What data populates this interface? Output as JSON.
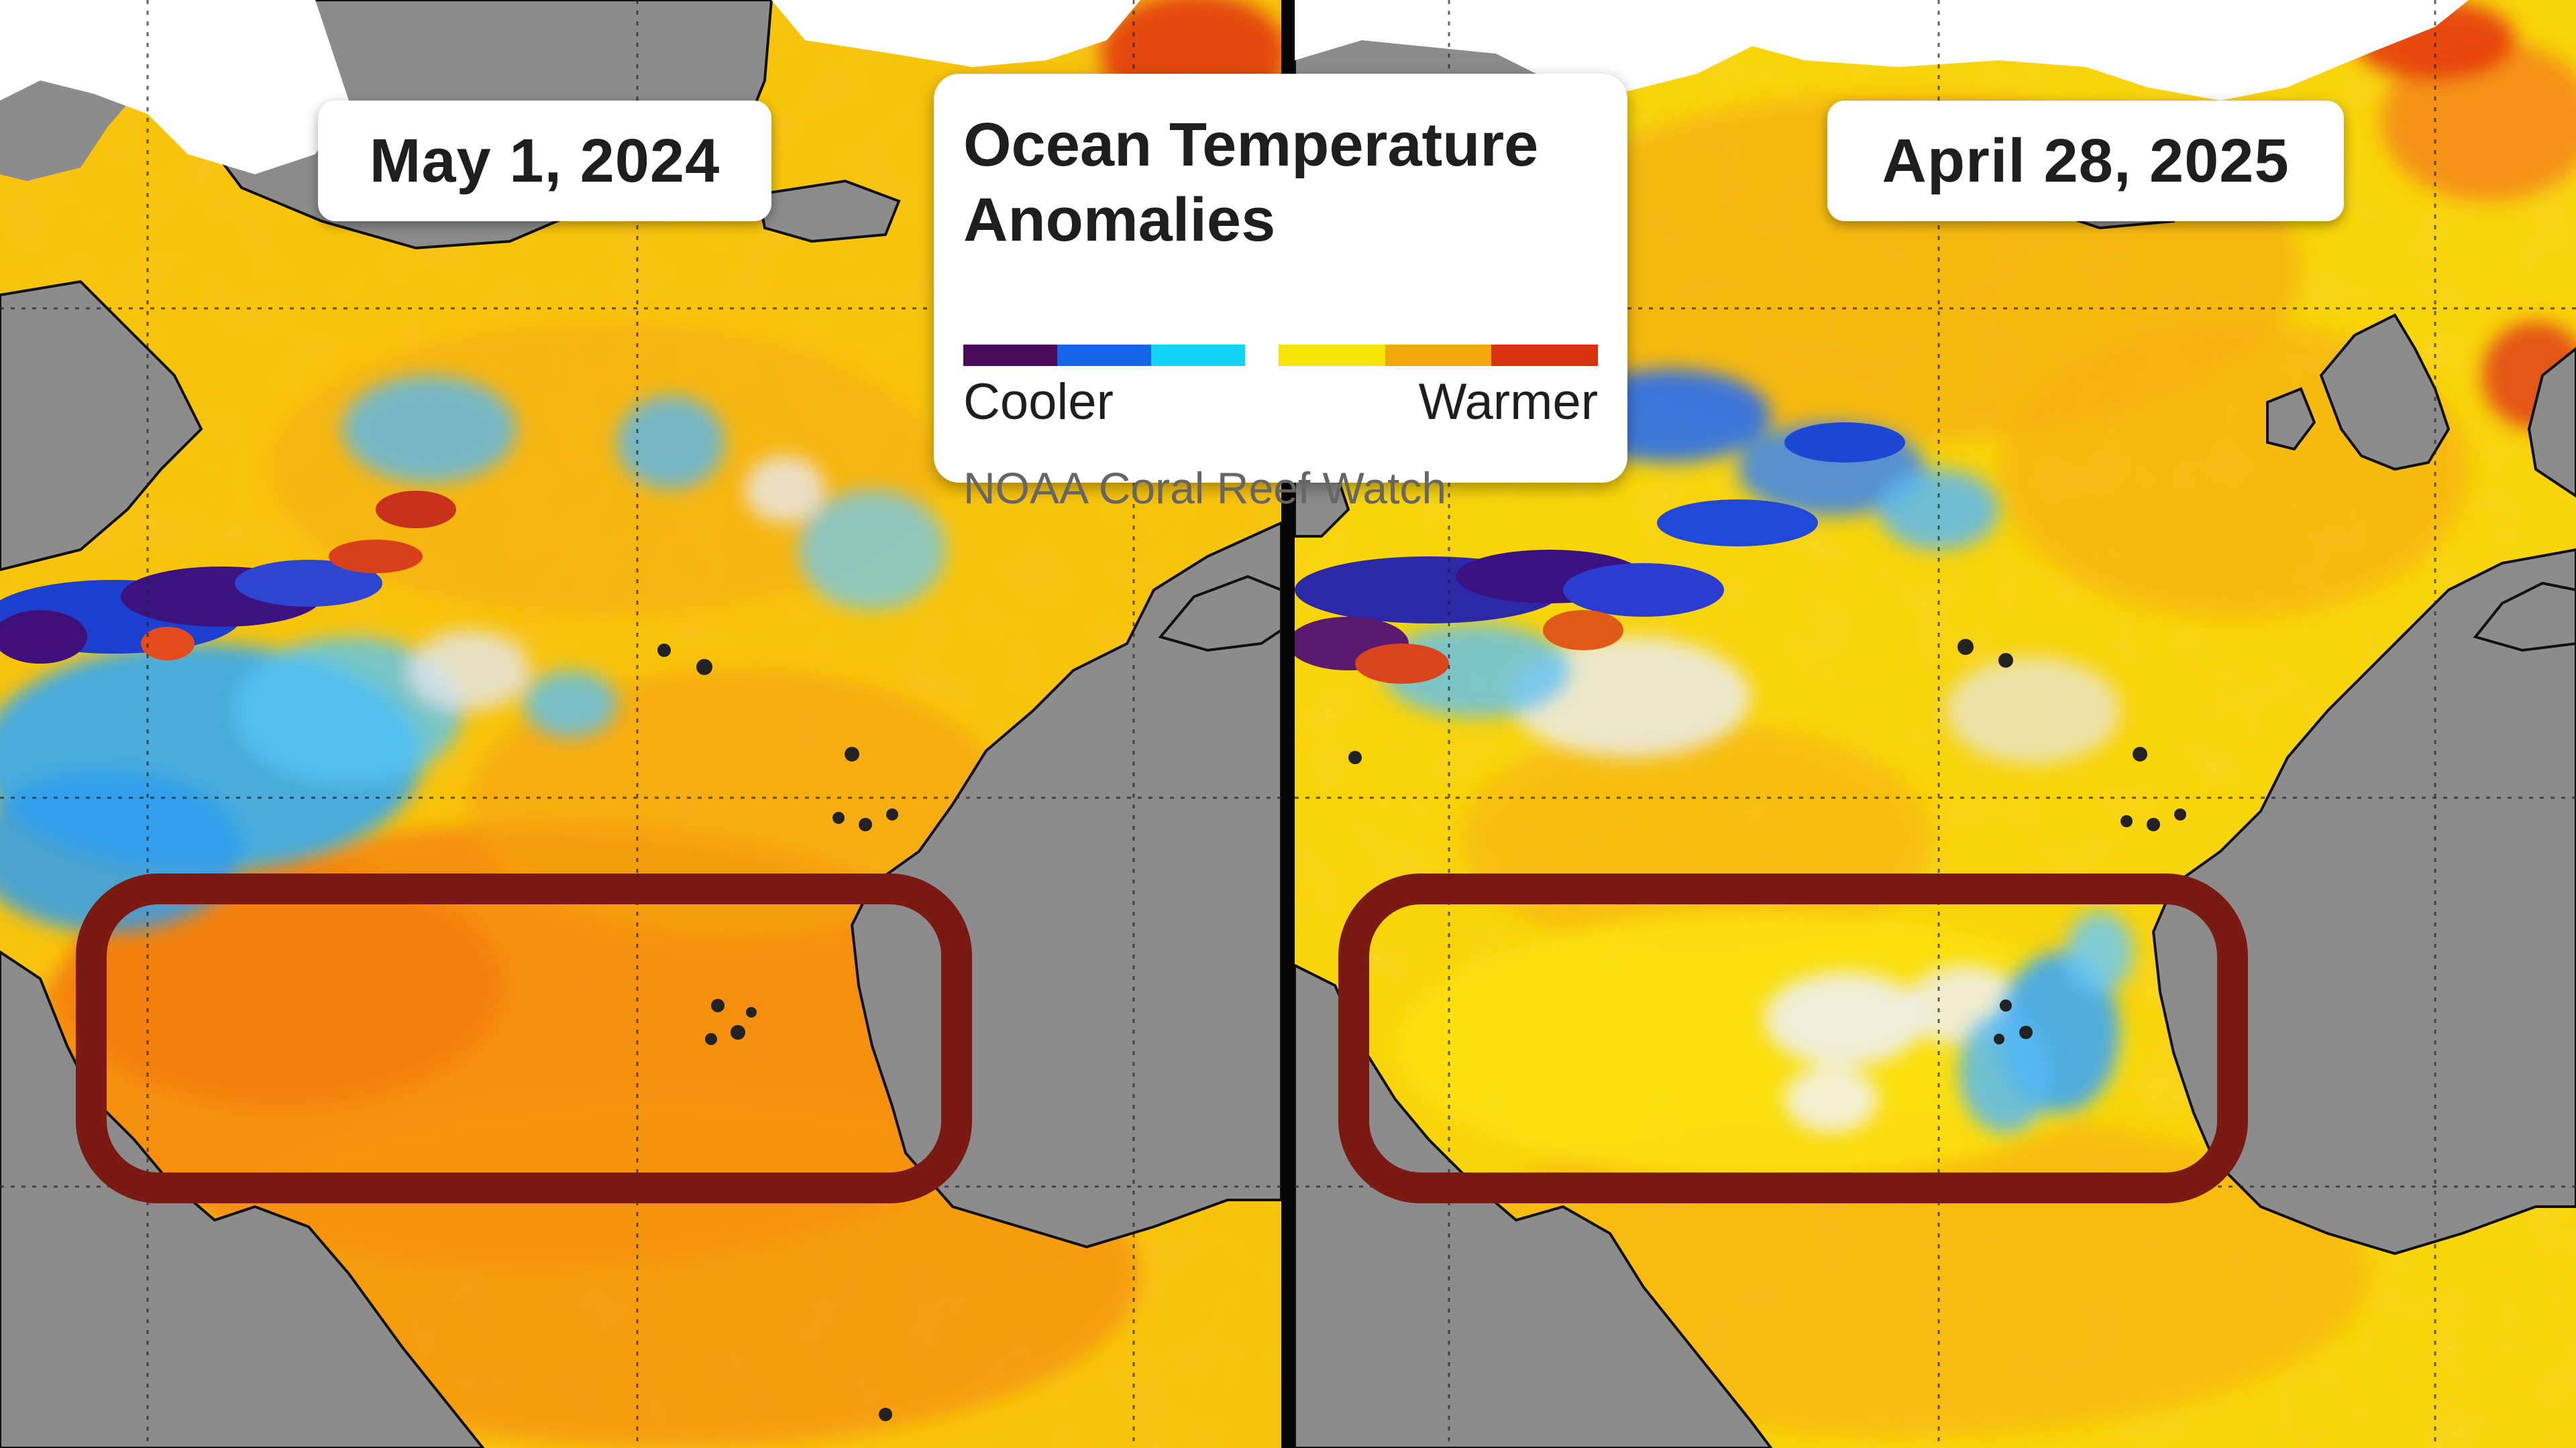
{
  "panels": [
    {
      "date": "May 1, 2024"
    },
    {
      "date": "April 28, 2025"
    }
  ],
  "legend": {
    "title": "Ocean Temperature Anomalies",
    "cooler_label": "Cooler",
    "warmer_label": "Warmer",
    "source": "NOAA Coral Reef Watch",
    "cool_colors": [
      "#4a0a5c",
      "#1565e8",
      "#12d4f5"
    ],
    "warm_colors": [
      "#f7e50a",
      "#f5a80c",
      "#d8320e"
    ]
  },
  "colors": {
    "land": "#8c8c8c",
    "ice": "#ffffff",
    "highlight_box": "#7a1a12",
    "divider": "#050505"
  }
}
